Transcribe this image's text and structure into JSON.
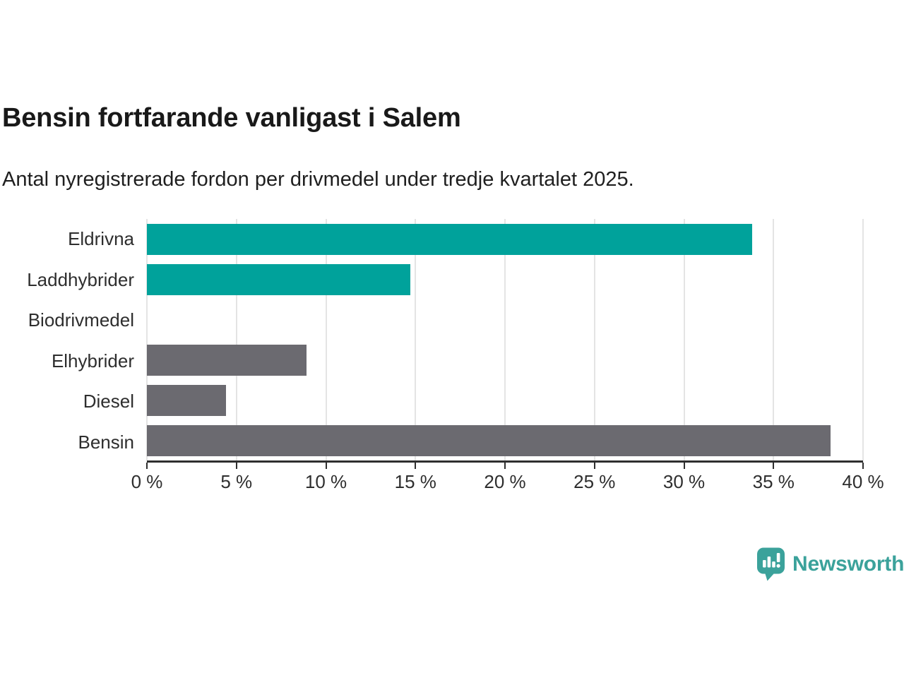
{
  "header": {
    "title": "Bensin fortfarande vanligast i Salem",
    "subtitle": "Antal nyregistrerade fordon per drivmedel under tredje kvartalet 2025."
  },
  "chart_data": {
    "type": "bar",
    "orientation": "horizontal",
    "title": "Bensin fortfarande vanligast i Salem",
    "subtitle": "Antal nyregistrerade fordon per drivmedel under tredje kvartalet 2025.",
    "categories": [
      "Eldrivna",
      "Laddhybrider",
      "Biodrivmedel",
      "Elhybrider",
      "Diesel",
      "Bensin"
    ],
    "values": [
      33.8,
      14.7,
      0,
      8.9,
      4.4,
      38.2
    ],
    "unit": "%",
    "xlim": [
      0,
      40
    ],
    "x_ticks": [
      0,
      5,
      10,
      15,
      20,
      25,
      30,
      35,
      40
    ],
    "x_tick_labels": [
      "0 %",
      "5 %",
      "10 %",
      "15 %",
      "20 %",
      "25 %",
      "30 %",
      "35 %",
      "40 %"
    ],
    "bar_colors": [
      "#00a29b",
      "#00a29b",
      "#6b6a70",
      "#6b6a70",
      "#6b6a70",
      "#6b6a70"
    ],
    "grid": true,
    "legend": false,
    "colors": {
      "highlight": "#00a29b",
      "default": "#6b6a70",
      "gridline": "#e4e4e4",
      "axis": "#2f2f2f"
    }
  },
  "branding": {
    "logo_text": "Newsworthy",
    "logo_color": "#3ba29b",
    "logo_icon": "newsworthy-chart-bubble-icon"
  }
}
